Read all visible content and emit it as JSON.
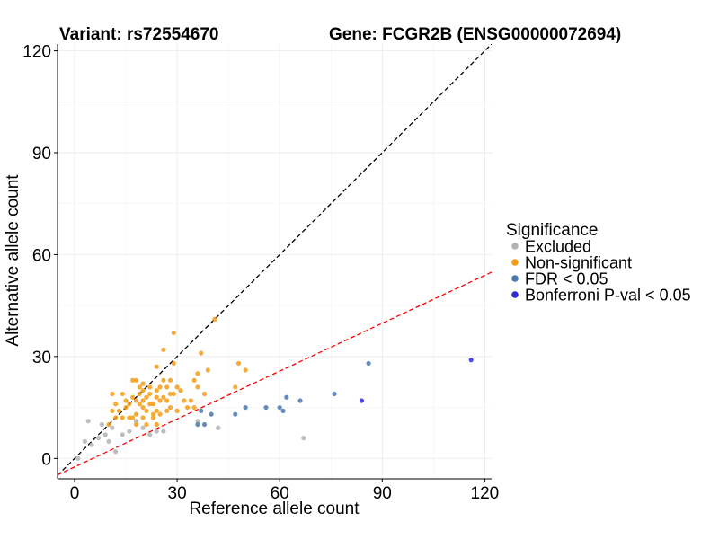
{
  "chart_data": {
    "type": "scatter",
    "title_left": "Variant: rs72554670",
    "title_right": "Gene: FCGR2B (ENSG00000072694)",
    "xlabel": "Reference allele count",
    "ylabel": "Alternative allele count",
    "xlim": [
      -5,
      122
    ],
    "ylim": [
      -6,
      122
    ],
    "xticks": [
      0,
      30,
      60,
      90,
      120
    ],
    "yticks": [
      0,
      30,
      60,
      90,
      120
    ],
    "grid": true,
    "legend_position": "right",
    "legend_title": "Significance",
    "reference_lines": [
      {
        "slope": 1,
        "intercept": 0,
        "color": "#000000",
        "style": "dashed"
      },
      {
        "slope": 0.47,
        "intercept": -2.5,
        "color": "#ff0000",
        "style": "dashed"
      }
    ],
    "series": [
      {
        "name": "Excluded",
        "color": "#b3b3b3",
        "points": [
          [
            1,
            0
          ],
          [
            3,
            5
          ],
          [
            4,
            11
          ],
          [
            5,
            4
          ],
          [
            7,
            6
          ],
          [
            8,
            10
          ],
          [
            9,
            7
          ],
          [
            10,
            5
          ],
          [
            11,
            9
          ],
          [
            12,
            2
          ],
          [
            14,
            7
          ],
          [
            16,
            8
          ],
          [
            18,
            11
          ],
          [
            20,
            9
          ],
          [
            22,
            7
          ],
          [
            24,
            8
          ],
          [
            26,
            8
          ],
          [
            36,
            11
          ],
          [
            42,
            9
          ],
          [
            67,
            6
          ]
        ]
      },
      {
        "name": "Non-significant",
        "color": "#f39c12",
        "points": [
          [
            10,
            10
          ],
          [
            11,
            14
          ],
          [
            11,
            19
          ],
          [
            12,
            12
          ],
          [
            12,
            16
          ],
          [
            13,
            14
          ],
          [
            14,
            12
          ],
          [
            14,
            19
          ],
          [
            15,
            15
          ],
          [
            15,
            17
          ],
          [
            16,
            12
          ],
          [
            16,
            16
          ],
          [
            17,
            12
          ],
          [
            17,
            18
          ],
          [
            17,
            23
          ],
          [
            18,
            10
          ],
          [
            18,
            13
          ],
          [
            18,
            17
          ],
          [
            18,
            23
          ],
          [
            19,
            16
          ],
          [
            19,
            19
          ],
          [
            19,
            21
          ],
          [
            20,
            12
          ],
          [
            20,
            15
          ],
          [
            20,
            17
          ],
          [
            20,
            20
          ],
          [
            20,
            22
          ],
          [
            21,
            10
          ],
          [
            21,
            14
          ],
          [
            21,
            18
          ],
          [
            22,
            16
          ],
          [
            22,
            19
          ],
          [
            22,
            21
          ],
          [
            23,
            12
          ],
          [
            23,
            13
          ],
          [
            23,
            16
          ],
          [
            24,
            10
          ],
          [
            24,
            14
          ],
          [
            24,
            18
          ],
          [
            24,
            20
          ],
          [
            24,
            27
          ],
          [
            25,
            13
          ],
          [
            25,
            17
          ],
          [
            25,
            21
          ],
          [
            26,
            18
          ],
          [
            26,
            23
          ],
          [
            26,
            32
          ],
          [
            27,
            14
          ],
          [
            27,
            17
          ],
          [
            27,
            21
          ],
          [
            28,
            15
          ],
          [
            28,
            19
          ],
          [
            28,
            23
          ],
          [
            29,
            19
          ],
          [
            29,
            28
          ],
          [
            29,
            37
          ],
          [
            30,
            14
          ],
          [
            30,
            21
          ],
          [
            31,
            20
          ],
          [
            32,
            17
          ],
          [
            33,
            15
          ],
          [
            34,
            17
          ],
          [
            35,
            15
          ],
          [
            35,
            23
          ],
          [
            36,
            21
          ],
          [
            36,
            25
          ],
          [
            37,
            31
          ],
          [
            38,
            19
          ],
          [
            39,
            26
          ],
          [
            41,
            41
          ],
          [
            47,
            21
          ],
          [
            48,
            28
          ],
          [
            50,
            26
          ]
        ]
      },
      {
        "name": "FDR < 0.05",
        "color": "#4a79b0",
        "points": [
          [
            36,
            10
          ],
          [
            37,
            14
          ],
          [
            38,
            10
          ],
          [
            40,
            13
          ],
          [
            47,
            13
          ],
          [
            50,
            15
          ],
          [
            56,
            15
          ],
          [
            60,
            15
          ],
          [
            61,
            14
          ],
          [
            62,
            18
          ],
          [
            66,
            17
          ],
          [
            76,
            19
          ],
          [
            86,
            28
          ]
        ]
      },
      {
        "name": "Bonferroni P-val < 0.05",
        "color": "#2b2bd9",
        "points": [
          [
            84,
            17
          ],
          [
            116,
            29
          ]
        ]
      }
    ]
  }
}
